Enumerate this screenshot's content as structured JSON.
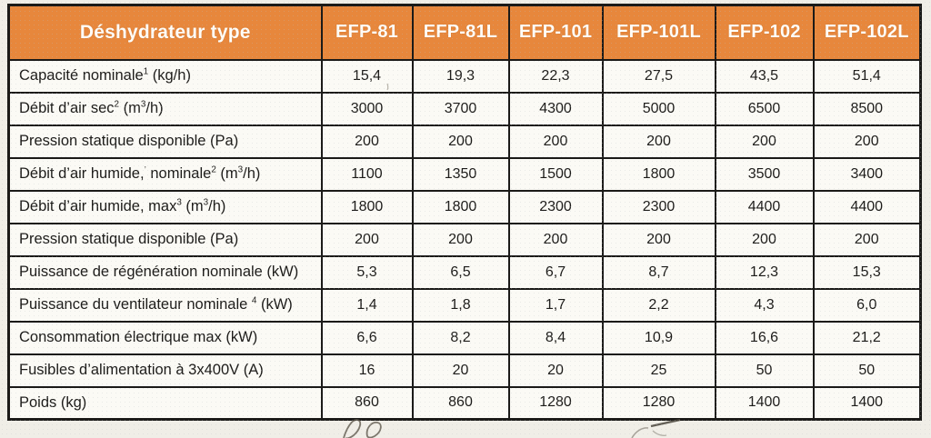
{
  "colors": {
    "header_orange": "#e7873c",
    "grid_border": "#1b1a18",
    "cell_background": "#fbfaf5",
    "page_background": "#f0eee7",
    "text": "#1d1c1a"
  },
  "table": {
    "title": "Déshydrateur type",
    "columns": [
      "EFP-81",
      "EFP-81L",
      "EFP-101",
      "EFP-101L",
      "EFP-102",
      "EFP-102L"
    ],
    "rows": [
      {
        "name": "capacite-nominale",
        "parts": [
          {
            "t": "Capacité nominale"
          },
          {
            "t": "1",
            "sup": true
          },
          {
            "t": " (kg/h)"
          }
        ],
        "values": [
          "15,4",
          "19,3",
          "22,3",
          "27,5",
          "43,5",
          "51,4"
        ]
      },
      {
        "name": "debit-air-sec",
        "parts": [
          {
            "t": "Débit d’air sec"
          },
          {
            "t": "2",
            "sup": true
          },
          {
            "t": " (m"
          },
          {
            "t": "3",
            "sup": true
          },
          {
            "t": "/h)"
          }
        ],
        "values": [
          "3000",
          "3700",
          "4300",
          "5000",
          "6500",
          "8500"
        ]
      },
      {
        "name": "pression-statique-disponible-1",
        "parts": [
          {
            "t": "Pression statique disponible (Pa)"
          }
        ],
        "values": [
          "200",
          "200",
          "200",
          "200",
          "200",
          "200"
        ]
      },
      {
        "name": "debit-air-humide-nominale",
        "parts": [
          {
            "t": "Débit d’air humide,"
          },
          {
            "t": "’",
            "sup": true,
            "faint": true
          },
          {
            "t": " nominale"
          },
          {
            "t": "2",
            "sup": true
          },
          {
            "t": " (m"
          },
          {
            "t": "3",
            "sup": true
          },
          {
            "t": "/h)"
          }
        ],
        "values": [
          "1100",
          "1350",
          "1500",
          "1800",
          "3500",
          "3400"
        ]
      },
      {
        "name": "debit-air-humide-max",
        "parts": [
          {
            "t": "Débit d’air humide, max"
          },
          {
            "t": "3",
            "sup": true
          },
          {
            "t": " (m"
          },
          {
            "t": "3",
            "sup": true
          },
          {
            "t": "/h)"
          }
        ],
        "values": [
          "1800",
          "1800",
          "2300",
          "2300",
          "4400",
          "4400"
        ]
      },
      {
        "name": "pression-statique-disponible-2",
        "parts": [
          {
            "t": "Pression statique disponible (Pa)"
          }
        ],
        "values": [
          "200",
          "200",
          "200",
          "200",
          "200",
          "200"
        ]
      },
      {
        "name": "puissance-regeneration-nominale",
        "parts": [
          {
            "t": "Puissance de régénération nominale (kW)"
          }
        ],
        "values": [
          "5,3",
          "6,5",
          "6,7",
          "8,7",
          "12,3",
          "15,3"
        ]
      },
      {
        "name": "puissance-ventilateur-nominale",
        "parts": [
          {
            "t": "Puissance du ventilateur nominale "
          },
          {
            "t": "4",
            "sup": true
          },
          {
            "t": " (kW)"
          }
        ],
        "values": [
          "1,4",
          "1,8",
          "1,7",
          "2,2",
          "4,3",
          "6,0"
        ]
      },
      {
        "name": "consommation-electrique-max",
        "parts": [
          {
            "t": "Consommation électrique max (kW)"
          }
        ],
        "values": [
          "6,6",
          "8,2",
          "8,4",
          "10,9",
          "16,6",
          "21,2"
        ]
      },
      {
        "name": "fusibles-alimentation",
        "parts": [
          {
            "t": "Fusibles d’alimentation à 3x400V (A)"
          }
        ],
        "values": [
          "16",
          "20",
          "20",
          "25",
          "50",
          "50"
        ]
      },
      {
        "name": "poids",
        "parts": [
          {
            "t": "Poids (kg)"
          }
        ],
        "values": [
          "860",
          "860",
          "1280",
          "1280",
          "1400",
          "1400"
        ]
      }
    ]
  },
  "artifacts": {
    "left_mark": "handwritten-pencil-scribble",
    "right_mark": "handwritten-pencil-mark",
    "tick_under_first_value": "small-scan-tick"
  }
}
